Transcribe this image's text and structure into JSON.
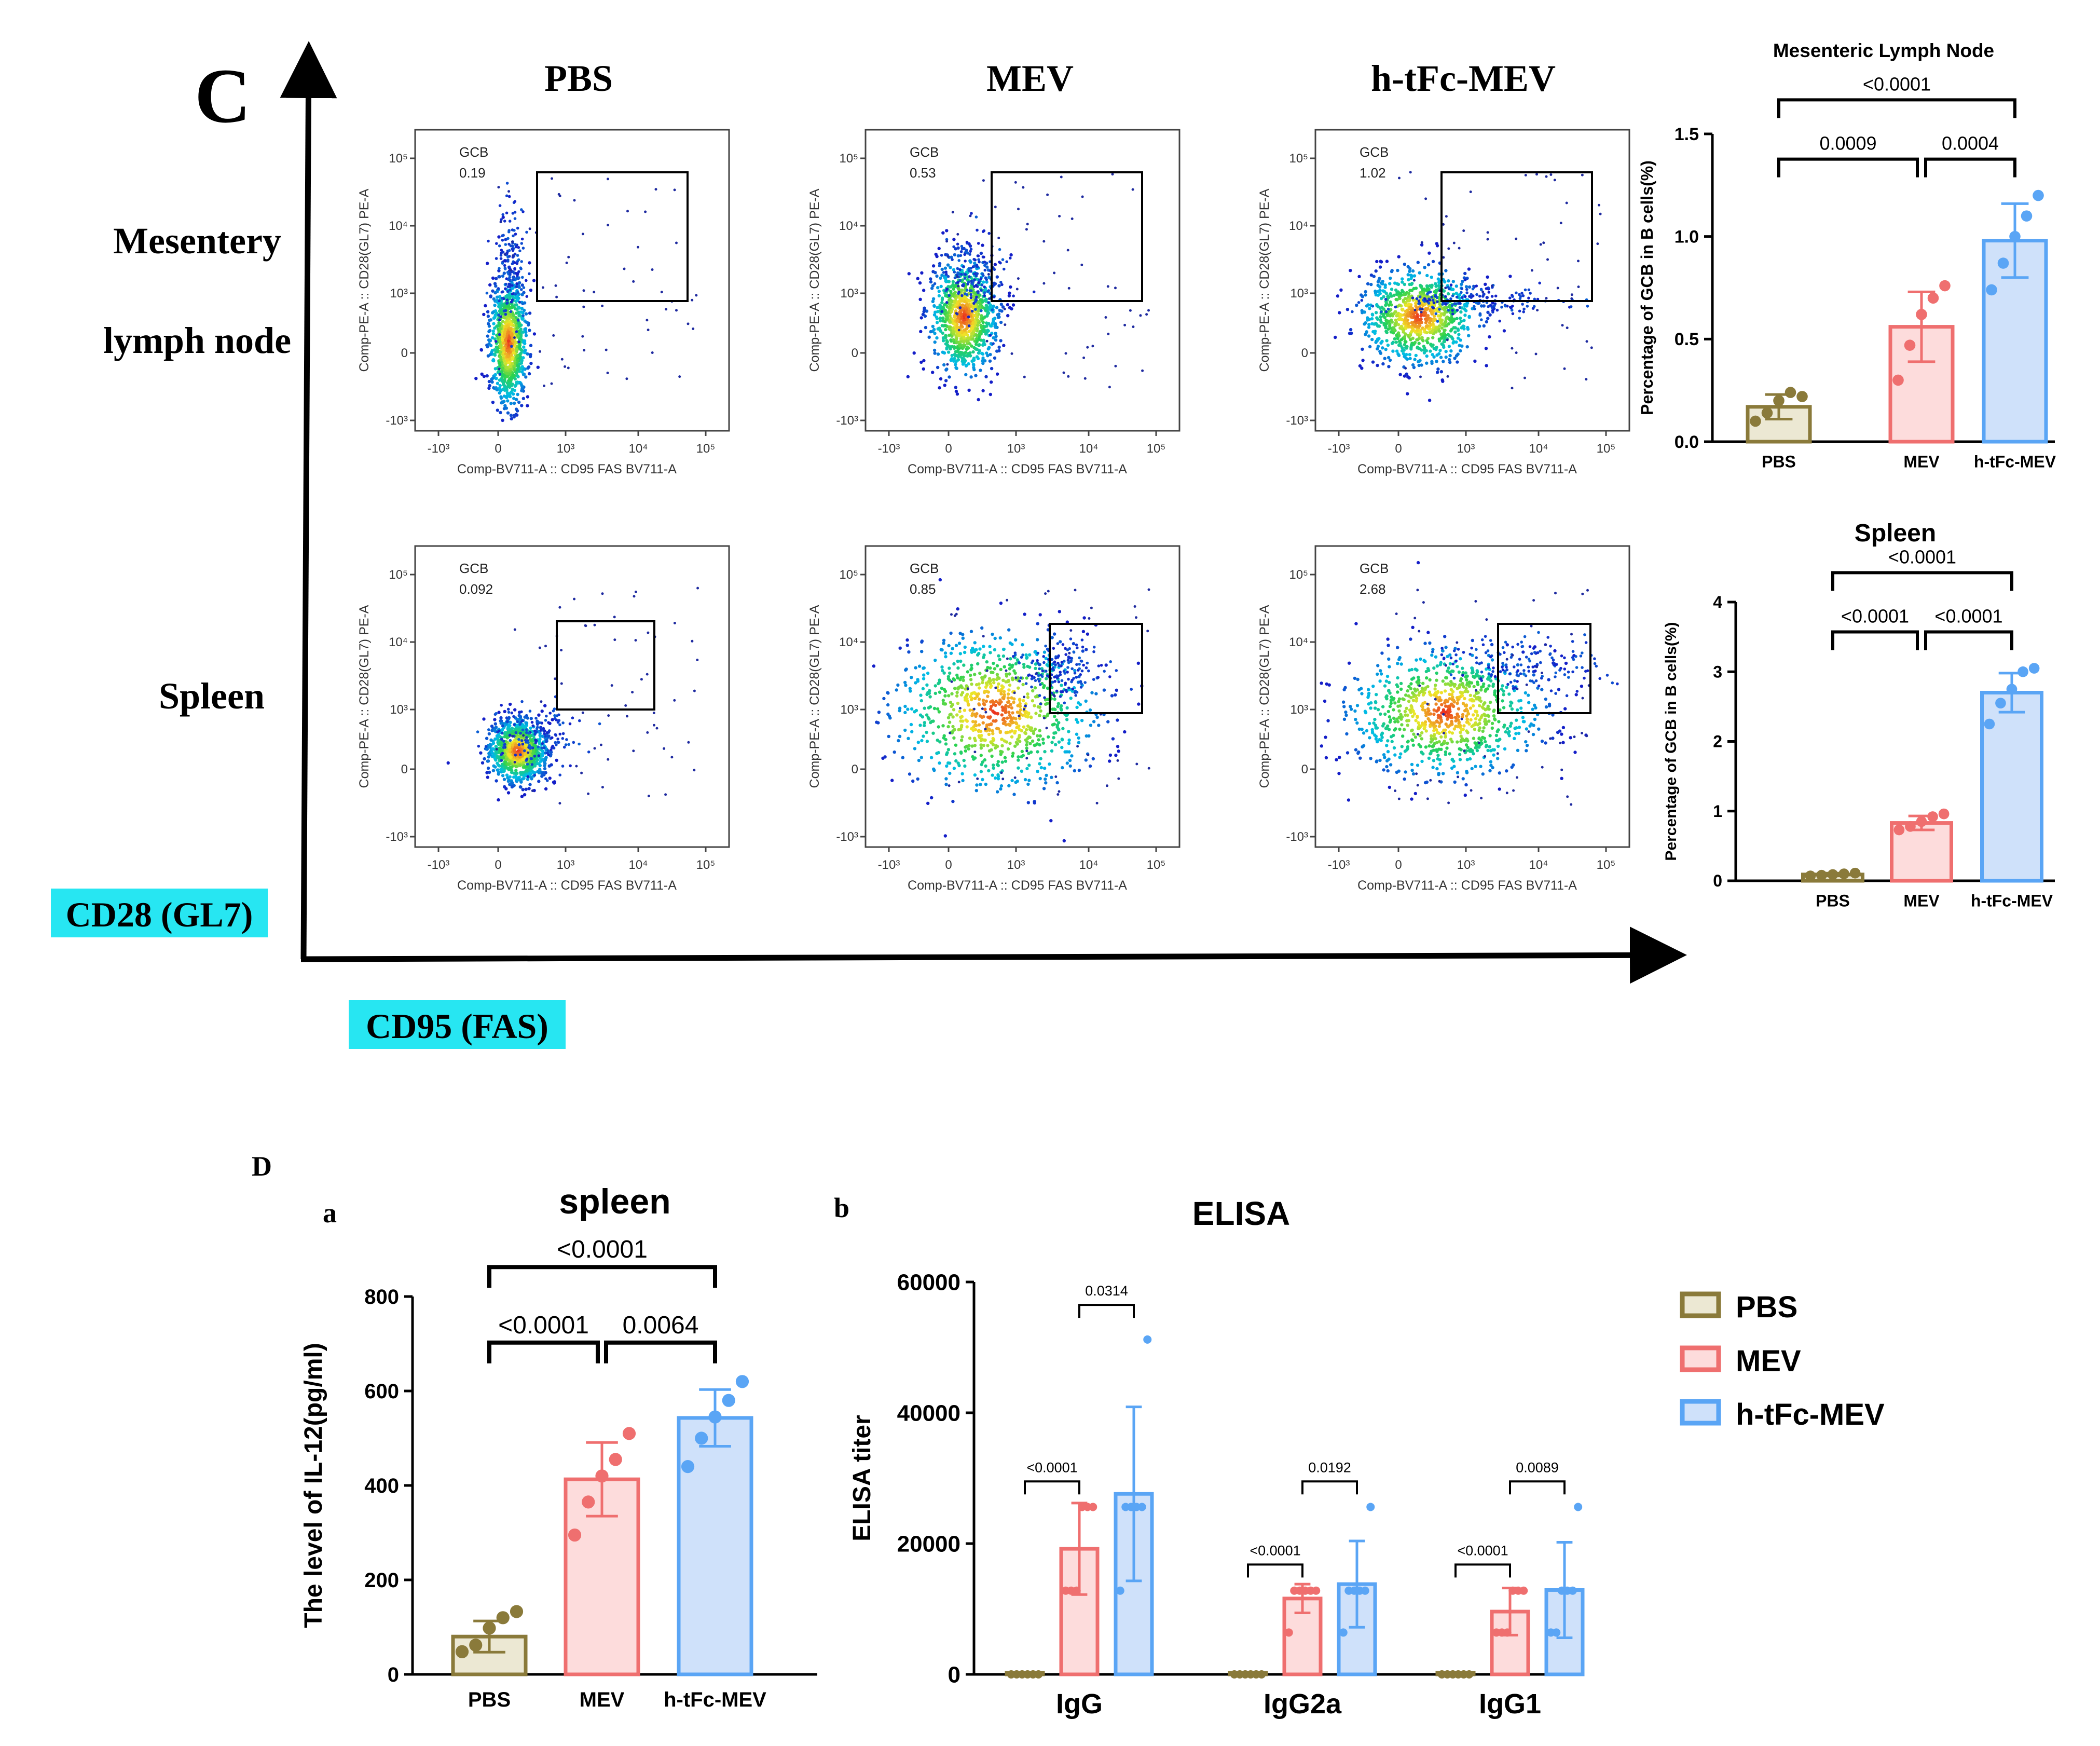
{
  "panel_c": {
    "label": "C",
    "columns": [
      "PBS",
      "MEV",
      "h-tFc-MEV"
    ],
    "rows": [
      "Mesentery",
      "lymph node",
      "Spleen"
    ],
    "y_axis_marker": "CD28 (GL7)",
    "x_axis_marker": "CD95 (FAS)",
    "facs": {
      "gate_name": "GCB",
      "y_axis_label": "Comp-PE-A :: CD28(GL7) PE-A",
      "x_axis_label": "Comp-BV711-A :: CD95  FAS  BV711-A",
      "x_ticks": [
        "-10³",
        "0",
        "10³",
        "10⁴",
        "10⁵"
      ],
      "y_ticks": [
        "10⁵",
        "10⁴",
        "10³",
        "0",
        "-10³"
      ],
      "plots": [
        {
          "row": "mesentery",
          "group": "PBS",
          "gate_value": "0.19"
        },
        {
          "row": "mesentery",
          "group": "MEV",
          "gate_value": "0.53"
        },
        {
          "row": "mesentery",
          "group": "h-tFc-MEV",
          "gate_value": "1.02"
        },
        {
          "row": "spleen",
          "group": "PBS",
          "gate_value": "0.092"
        },
        {
          "row": "spleen",
          "group": "MEV",
          "gate_value": "0.85"
        },
        {
          "row": "spleen",
          "group": "h-tFc-MEV",
          "gate_value": "2.68"
        }
      ]
    }
  },
  "panel_d": {
    "label": "D",
    "sub_a": "a",
    "sub_b": "b"
  },
  "legend": [
    {
      "label": "PBS",
      "color": "#8a7a3a",
      "fill": "#ece8d3"
    },
    {
      "label": "MEV",
      "color": "#ef6f6f",
      "fill": "#fddcdc"
    },
    {
      "label": "h-tFc-MEV",
      "color": "#5aa5f5",
      "fill": "#cfe1fa"
    }
  ],
  "chart_data": [
    {
      "id": "mln",
      "type": "bar",
      "title": "Mesenteric Lymph Node",
      "ylabel": "Percentage of GCB in B cells(%)",
      "categories": [
        "PBS",
        "MEV",
        "h-tFc-MEV"
      ],
      "values": [
        0.17,
        0.56,
        0.98
      ],
      "errors": [
        0.06,
        0.17,
        0.18
      ],
      "points": [
        [
          0.1,
          0.14,
          0.2,
          0.24,
          0.22
        ],
        [
          0.3,
          0.47,
          0.62,
          0.7,
          0.76
        ],
        [
          0.74,
          0.87,
          1.0,
          1.1,
          1.2
        ]
      ],
      "ylim": [
        0,
        1.5
      ],
      "yticks": [
        "0.0",
        "0.5",
        "1.0",
        "1.5"
      ],
      "comparisons": [
        {
          "from": 0,
          "to": 1,
          "label": "0.0009"
        },
        {
          "from": 1,
          "to": 2,
          "label": "0.0004"
        },
        {
          "from": 0,
          "to": 2,
          "label": "<0.0001"
        }
      ]
    },
    {
      "id": "spleen_gcb",
      "type": "bar",
      "title": "Spleen",
      "ylabel": "Percentage of GCB in B cells(%)",
      "categories": [
        "PBS",
        "MEV",
        "h-tFc-MEV"
      ],
      "values": [
        0.09,
        0.83,
        2.7
      ],
      "errors": [
        0.02,
        0.1,
        0.28
      ],
      "points": [
        [
          0.07,
          0.08,
          0.09,
          0.1,
          0.11
        ],
        [
          0.73,
          0.78,
          0.85,
          0.92,
          0.96
        ],
        [
          2.25,
          2.55,
          2.75,
          3.0,
          3.05
        ]
      ],
      "ylim": [
        0,
        4
      ],
      "yticks": [
        "0",
        "1",
        "2",
        "3",
        "4"
      ],
      "comparisons": [
        {
          "from": 0,
          "to": 1,
          "label": "<0.0001"
        },
        {
          "from": 1,
          "to": 2,
          "label": "<0.0001"
        },
        {
          "from": 0,
          "to": 2,
          "label": "<0.0001"
        }
      ]
    },
    {
      "id": "il12",
      "type": "bar",
      "title": "spleen",
      "ylabel": "The level of IL-12(pg/ml)",
      "categories": [
        "PBS",
        "MEV",
        "h-tFc-MEV"
      ],
      "values": [
        80,
        413,
        543
      ],
      "errors": [
        33,
        78,
        60
      ],
      "points": [
        [
          48,
          62,
          98,
          120,
          133
        ],
        [
          295,
          365,
          420,
          455,
          510
        ],
        [
          440,
          500,
          545,
          580,
          620
        ]
      ],
      "ylim": [
        0,
        800
      ],
      "yticks": [
        "0",
        "200",
        "400",
        "600",
        "800"
      ],
      "comparisons": [
        {
          "from": 0,
          "to": 1,
          "label": "<0.0001"
        },
        {
          "from": 1,
          "to": 2,
          "label": "0.0064"
        },
        {
          "from": 0,
          "to": 2,
          "label": "<0.0001"
        }
      ]
    },
    {
      "id": "elisa",
      "type": "bar",
      "title": "ELISA",
      "ylabel": "ELISA titer",
      "categories": [
        "IgG",
        "IgG2a",
        "IgG1"
      ],
      "series": [
        {
          "name": "PBS",
          "values": [
            0,
            0,
            0
          ],
          "errors": [
            0,
            0,
            0
          ],
          "points": [
            [
              0,
              0,
              0,
              0,
              0,
              0
            ],
            [
              0,
              0,
              0,
              0,
              0,
              0
            ],
            [
              0,
              0,
              0,
              0,
              0,
              0
            ]
          ]
        },
        {
          "name": "MEV",
          "values": [
            19200,
            11600,
            9600
          ],
          "errors": [
            7000,
            2200,
            3600
          ],
          "points": [
            [
              12800,
              12800,
              12800,
              25600,
              25600,
              25600
            ],
            [
              6400,
              12800,
              12800,
              12800,
              12800,
              12800
            ],
            [
              6400,
              6400,
              6400,
              12800,
              12800,
              12800
            ]
          ]
        },
        {
          "name": "h-tFc-MEV",
          "values": [
            27600,
            13800,
            12900
          ],
          "errors": [
            13300,
            6600,
            7300
          ],
          "points": [
            [
              12800,
              25600,
              25600,
              25600,
              25600,
              51200
            ],
            [
              6400,
              12800,
              12800,
              12800,
              12800,
              25600
            ],
            [
              6400,
              6400,
              12800,
              12800,
              12800,
              25600
            ]
          ]
        }
      ],
      "ylim": [
        0,
        60000
      ],
      "yticks": [
        "0",
        "20000",
        "40000",
        "60000"
      ],
      "comparisons": [
        {
          "group": 0,
          "a": 0,
          "b": 1,
          "label": "<0.0001",
          "y": 29500
        },
        {
          "group": 0,
          "a": 1,
          "b": 2,
          "label": "0.0314",
          "y": 56500
        },
        {
          "group": 1,
          "a": 0,
          "b": 1,
          "label": "<0.0001",
          "y": 16800
        },
        {
          "group": 1,
          "a": 1,
          "b": 2,
          "label": "0.0192",
          "y": 29500
        },
        {
          "group": 2,
          "a": 0,
          "b": 1,
          "label": "<0.0001",
          "y": 16800
        },
        {
          "group": 2,
          "a": 1,
          "b": 2,
          "label": "0.0089",
          "y": 29500
        }
      ]
    }
  ]
}
